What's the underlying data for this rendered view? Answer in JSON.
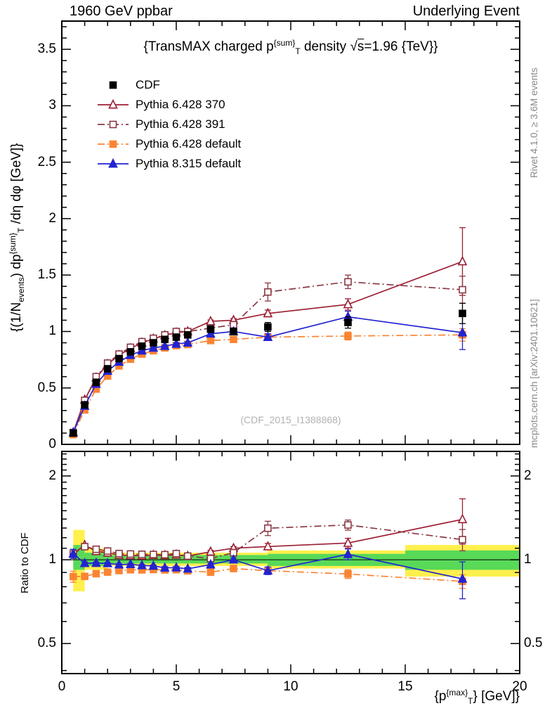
{
  "header": {
    "left": "1960 GeV ppbar",
    "right": "Underlying Event"
  },
  "title": {
    "t1": "{TransMAX charged p",
    "sup": "{sum}",
    "sub": "T",
    "t2": " density ",
    "sqrt": "√",
    "s": "s",
    "t3": "=1.96 {TeV}}"
  },
  "ylabel": {
    "t1": "{(1/N",
    "sub1": "events",
    "t2": ") dp",
    "sup": "{sum}",
    "sub2": "T",
    "t3": " /dη dφ [GeV]}"
  },
  "xlabel": {
    "t1": "{p",
    "sup": "{max}",
    "sub": "T",
    "t2": "} [GeV]}"
  },
  "ratio_label": "Ratio to CDF",
  "watermark": "(CDF_2015_I1388868)",
  "side_notes": {
    "rivet": "Rivet 4.1.0, ≥ 3.6M events",
    "mcplots": "mcplots.cern.ch [arXiv:2401.10621]"
  },
  "chart_data": {
    "type": "line",
    "title": "{TransMAX charged p^{sum}_T density √s=1.96 {TeV}}",
    "xlabel": "{p_T^{max}} [GeV]}",
    "ylabel": "{(1/N_events) dp^{sum}_T /dη dφ [GeV]}",
    "ratio_ylabel": "Ratio to CDF",
    "legend_position": "top-left",
    "grid": false,
    "x": [
      0.5,
      1.0,
      1.5,
      2.0,
      2.5,
      3.0,
      3.5,
      4.0,
      4.5,
      5.0,
      5.5,
      6.5,
      7.5,
      9.0,
      12.5,
      17.5
    ],
    "xlim": [
      0,
      20
    ],
    "ylim_main": [
      0,
      3.75
    ],
    "ylim_ratio": [
      0.39,
      2.45
    ],
    "ratio_scale": "log",
    "xticks": [
      0,
      5,
      10,
      15,
      20
    ],
    "yticks_main": [
      0,
      0.5,
      1,
      1.5,
      2,
      2.5,
      3,
      3.5
    ],
    "yticks_ratio": [
      0.5,
      1,
      2
    ],
    "reference_series": "CDF",
    "series": [
      {
        "name": "CDF",
        "color": "#000000",
        "marker": "square",
        "filled": true,
        "line": "none",
        "values": [
          0.1,
          0.35,
          0.55,
          0.67,
          0.76,
          0.82,
          0.87,
          0.9,
          0.93,
          0.95,
          0.97,
          1.02,
          1.0,
          1.04,
          1.08,
          1.16
        ],
        "errors": [
          0.005,
          0.008,
          0.008,
          0.008,
          0.008,
          0.008,
          0.01,
          0.01,
          0.01,
          0.012,
          0.015,
          0.02,
          0.025,
          0.04,
          0.05,
          0.09
        ]
      },
      {
        "name": "Pythia 6.428 370",
        "color": "#9b1e32",
        "marker": "triangle",
        "filled": false,
        "line": "solid",
        "values": [
          0.105,
          0.395,
          0.59,
          0.71,
          0.79,
          0.85,
          0.9,
          0.935,
          0.965,
          0.99,
          1.0,
          1.09,
          1.1,
          1.16,
          1.24,
          1.62
        ],
        "errors": [
          0.004,
          0.004,
          0.005,
          0.005,
          0.005,
          0.006,
          0.006,
          0.007,
          0.008,
          0.009,
          0.01,
          0.012,
          0.015,
          0.03,
          0.05,
          0.3
        ]
      },
      {
        "name": "Pythia 6.428 391",
        "color": "#8a3844",
        "marker": "square",
        "filled": false,
        "line": "dashdot",
        "values": [
          0.105,
          0.39,
          0.6,
          0.72,
          0.8,
          0.86,
          0.91,
          0.94,
          0.97,
          1.0,
          1.0,
          1.03,
          1.06,
          1.35,
          1.44,
          1.37
        ],
        "errors": [
          0.004,
          0.004,
          0.005,
          0.005,
          0.006,
          0.006,
          0.007,
          0.008,
          0.009,
          0.01,
          0.012,
          0.015,
          0.03,
          0.08,
          0.06,
          0.12
        ]
      },
      {
        "name": "Pythia 6.428 default",
        "color": "#fb8433",
        "marker": "square",
        "filled": true,
        "line": "dashdot",
        "values": [
          0.087,
          0.305,
          0.49,
          0.605,
          0.695,
          0.755,
          0.8,
          0.83,
          0.855,
          0.875,
          0.885,
          0.92,
          0.93,
          0.95,
          0.96,
          0.97
        ],
        "errors": [
          0.004,
          0.004,
          0.005,
          0.005,
          0.005,
          0.006,
          0.006,
          0.007,
          0.008,
          0.009,
          0.01,
          0.012,
          0.015,
          0.025,
          0.035,
          0.055
        ]
      },
      {
        "name": "Pythia 8.315 default",
        "color": "#2323cf",
        "marker": "triangle",
        "filled": true,
        "line": "solid",
        "values": [
          0.105,
          0.34,
          0.535,
          0.65,
          0.73,
          0.79,
          0.83,
          0.855,
          0.87,
          0.89,
          0.9,
          0.98,
          1.0,
          0.95,
          1.13,
          0.99
        ],
        "errors": [
          0.004,
          0.004,
          0.005,
          0.005,
          0.005,
          0.006,
          0.006,
          0.007,
          0.008,
          0.009,
          0.01,
          0.012,
          0.015,
          0.03,
          0.05,
          0.15
        ]
      }
    ],
    "bands": {
      "yellow_color": "#fff04d",
      "green_color": "#58d958",
      "segments": [
        {
          "x0": 0.5,
          "x1": 1.0,
          "yellow": [
            0.77,
            1.28
          ],
          "green": [
            0.92,
            1.13
          ]
        },
        {
          "x0": 1.0,
          "x1": 2.0,
          "yellow": [
            0.92,
            1.1
          ],
          "green": [
            0.95,
            1.06
          ]
        },
        {
          "x0": 2.0,
          "x1": 9.0,
          "yellow": [
            0.95,
            1.06
          ],
          "green": [
            0.97,
            1.04
          ]
        },
        {
          "x0": 9.0,
          "x1": 15.0,
          "yellow": [
            0.93,
            1.08
          ],
          "green": [
            0.95,
            1.05
          ]
        },
        {
          "x0": 15.0,
          "x1": 20.0,
          "yellow": [
            0.87,
            1.13
          ],
          "green": [
            0.92,
            1.08
          ]
        }
      ]
    }
  }
}
